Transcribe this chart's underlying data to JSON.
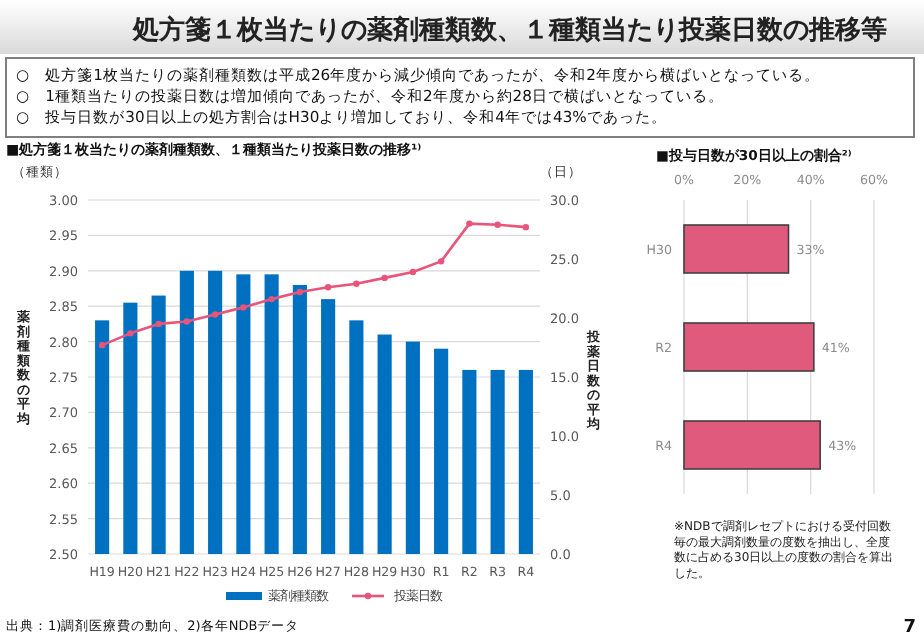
{
  "chart_data": [
    {
      "type": "other",
      "title": "処方箋１枚当たりの薬剤種類数、１種類当たり投薬日数の推移等",
      "annotations": [
        "○　処方箋1枚当たりの薬剤種類数は平成26年度から減少傾向であったが、令和2年度から横ばいとなっている。",
        "○　1種類当たりの投薬日数は増加傾向であったが、令和2年度から約28日で横ばいとなっている。",
        "○　投与日数が30日以上の処方割合はH30より増加しており、令和4年では43%であった。"
      ]
    },
    {
      "type": "bar",
      "title": "■処方箋１枚当たりの薬剤種類数、１種類当たり投薬日数の推移¹⁾",
      "categories": [
        "H19",
        "H20",
        "H21",
        "H22",
        "H23",
        "H24",
        "H25",
        "H26",
        "H27",
        "H28",
        "H29",
        "H30",
        "R1",
        "R2",
        "R3",
        "R4"
      ],
      "series": [
        {
          "name": "薬剤種類数",
          "color": "#0070c0",
          "values": [
            2.83,
            2.855,
            2.865,
            2.9,
            2.9,
            2.895,
            2.895,
            2.88,
            2.86,
            2.83,
            2.81,
            2.8,
            2.79,
            2.76,
            2.76,
            2.76
          ]
        },
        {
          "name": "投薬日数",
          "type": "line",
          "axis": "y2",
          "color": "#e8557a",
          "values": [
            17.7,
            18.7,
            19.5,
            19.7,
            20.3,
            20.9,
            21.6,
            22.2,
            22.6,
            22.9,
            23.4,
            23.9,
            24.8,
            28.0,
            27.9,
            27.7
          ]
        }
      ],
      "ylabel": "薬剤種類数の平均",
      "y2label": "投薬日数の平均",
      "ylim": [
        2.5,
        3.0
      ],
      "yticks": [
        {
          "value": 2.5,
          "label": "2.50"
        },
        {
          "value": 2.55,
          "label": "2.55"
        },
        {
          "value": 2.6,
          "label": "2.60"
        },
        {
          "value": 2.65,
          "label": "2.65"
        },
        {
          "value": 2.7,
          "label": "2.70"
        },
        {
          "value": 2.75,
          "label": "2.75"
        },
        {
          "value": 2.8,
          "label": "2.80"
        },
        {
          "value": 2.85,
          "label": "2.85"
        },
        {
          "value": 2.9,
          "label": "2.90"
        },
        {
          "value": 2.95,
          "label": "2.95"
        },
        {
          "value": 3.0,
          "label": "3.00"
        }
      ],
      "y2lim": [
        0,
        30
      ],
      "y2ticks": [
        {
          "value": 0,
          "label": "0.0"
        },
        {
          "value": 5,
          "label": "5.0"
        },
        {
          "value": 10,
          "label": "10.0"
        },
        {
          "value": 15,
          "label": "15.0"
        },
        {
          "value": 20,
          "label": "20.0"
        },
        {
          "value": 25,
          "label": "25.0"
        },
        {
          "value": 30,
          "label": "30.0"
        }
      ],
      "grid": "y",
      "legend": "bottom",
      "marker": "circle",
      "annotations": [
        "（種類）",
        "（日）",
        "出典：1)調剤医療費の動向、2)各年NDBデータ"
      ]
    },
    {
      "type": "bar",
      "orientation": "horizontal",
      "title": "■投与日数が30日以上の割合²⁾",
      "categories": [
        "H30",
        "R2",
        "R4"
      ],
      "values": [
        33,
        41,
        43
      ],
      "value_labels": [
        "33%",
        "41%",
        "43%"
      ],
      "color": "#e05a7e",
      "xlim": [
        0,
        60
      ],
      "xticks": [
        {
          "value": 0,
          "label": "0%"
        },
        {
          "value": 20,
          "label": "20%"
        },
        {
          "value": 40,
          "label": "40%"
        },
        {
          "value": 60,
          "label": "60%"
        }
      ],
      "grid": "x",
      "annotations": [
        "※NDBで調剤レセプトにおける受付回数毎の最大調剤数量の度数を抽出し、全度数に占める30日以上の度数の割合を算出した。",
        "7"
      ]
    }
  ]
}
